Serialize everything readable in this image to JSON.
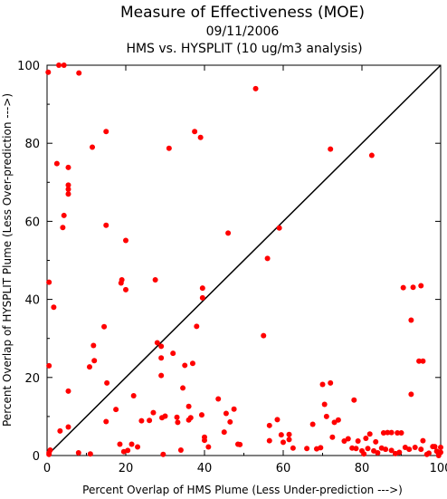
{
  "chart_data": {
    "type": "scatter",
    "title": "Measure of Effectiveness (MOE)",
    "subtitle_lines": [
      "09/11/2006",
      "HMS vs. HYSPLIT  (10 ug/m3 analysis)"
    ],
    "xlabel": "Percent Overlap of HMS Plume (Less Under-prediction --->)",
    "ylabel": "Percent Overlap of HYSPLIT Plume (Less Over-prediction --->)",
    "xlim": [
      0,
      100
    ],
    "ylim": [
      0,
      100
    ],
    "x_ticks": [
      0,
      20,
      40,
      60,
      80,
      100
    ],
    "y_ticks": [
      0,
      20,
      40,
      60,
      80,
      100
    ],
    "grid": false,
    "reference_line": {
      "from": [
        0,
        0
      ],
      "to": [
        100,
        100
      ]
    },
    "point_color": "#ff0000",
    "points": [
      [
        0.3,
        98.2
      ],
      [
        3.0,
        100.0
      ],
      [
        4.3,
        100.0
      ],
      [
        8.1,
        98.0
      ],
      [
        2.5,
        74.8
      ],
      [
        5.4,
        73.8
      ],
      [
        5.4,
        69.3
      ],
      [
        5.4,
        68.2
      ],
      [
        5.4,
        67.0
      ],
      [
        4.3,
        61.5
      ],
      [
        4.0,
        58.4
      ],
      [
        11.5,
        79.0
      ],
      [
        15.0,
        83.0
      ],
      [
        15.0,
        59.0
      ],
      [
        20.0,
        55.1
      ],
      [
        20.0,
        42.5
      ],
      [
        19.0,
        45.0
      ],
      [
        18.8,
        44.2
      ],
      [
        0.5,
        44.4
      ],
      [
        1.7,
        38.0
      ],
      [
        0.5,
        23.0
      ],
      [
        11.8,
        28.2
      ],
      [
        14.5,
        33.0
      ],
      [
        12.0,
        24.3
      ],
      [
        10.8,
        22.7
      ],
      [
        15.2,
        18.6
      ],
      [
        5.4,
        16.5
      ],
      [
        3.3,
        6.3
      ],
      [
        5.4,
        7.3
      ],
      [
        0.5,
        0.7
      ],
      [
        0.8,
        1.4
      ],
      [
        0.5,
        0.3
      ],
      [
        8.0,
        0.7
      ],
      [
        11.0,
        0.4
      ],
      [
        15.0,
        8.7
      ],
      [
        17.5,
        11.8
      ],
      [
        18.5,
        2.9
      ],
      [
        19.5,
        1.0
      ],
      [
        20.5,
        1.3
      ],
      [
        21.5,
        2.9
      ],
      [
        23.0,
        2.2
      ],
      [
        22.0,
        15.3
      ],
      [
        24.0,
        8.9
      ],
      [
        26.0,
        9.0
      ],
      [
        27.0,
        11.0
      ],
      [
        27.5,
        45.0
      ],
      [
        28.0,
        28.9
      ],
      [
        29.0,
        28.0
      ],
      [
        29.0,
        25.0
      ],
      [
        29.0,
        20.5
      ],
      [
        29.5,
        0.3
      ],
      [
        29.2,
        9.7
      ],
      [
        30.0,
        10.1
      ],
      [
        31.0,
        78.7
      ],
      [
        32.0,
        26.2
      ],
      [
        33.0,
        9.8
      ],
      [
        33.2,
        8.5
      ],
      [
        34.0,
        1.4
      ],
      [
        34.5,
        17.3
      ],
      [
        35.0,
        23.1
      ],
      [
        36.0,
        9.1
      ],
      [
        36.5,
        9.7
      ],
      [
        36.0,
        12.6
      ],
      [
        37.0,
        23.6
      ],
      [
        37.5,
        83.0
      ],
      [
        39.0,
        81.5
      ],
      [
        38.0,
        33.1
      ],
      [
        39.5,
        42.9
      ],
      [
        39.5,
        40.4
      ],
      [
        39.3,
        10.4
      ],
      [
        40.0,
        4.7
      ],
      [
        40.0,
        3.9
      ],
      [
        41.0,
        2.2
      ],
      [
        43.5,
        14.5
      ],
      [
        45.0,
        6.0
      ],
      [
        45.5,
        10.8
      ],
      [
        46.0,
        57.0
      ],
      [
        46.5,
        8.6
      ],
      [
        47.5,
        11.9
      ],
      [
        48.5,
        2.9
      ],
      [
        49.0,
        2.8
      ],
      [
        53.0,
        94.0
      ],
      [
        55.0,
        30.7
      ],
      [
        56.0,
        50.5
      ],
      [
        56.5,
        3.8
      ],
      [
        56.5,
        7.7
      ],
      [
        58.5,
        9.2
      ],
      [
        59.0,
        58.3
      ],
      [
        59.5,
        5.3
      ],
      [
        60.0,
        3.4
      ],
      [
        61.5,
        4.1
      ],
      [
        61.5,
        5.4
      ],
      [
        62.5,
        1.9
      ],
      [
        66.0,
        1.8
      ],
      [
        67.5,
        8.0
      ],
      [
        68.5,
        1.7
      ],
      [
        69.5,
        2.0
      ],
      [
        70.0,
        18.2
      ],
      [
        70.5,
        13.1
      ],
      [
        71.0,
        10.0
      ],
      [
        72.0,
        18.6
      ],
      [
        72.0,
        78.5
      ],
      [
        72.5,
        4.7
      ],
      [
        73.0,
        8.5
      ],
      [
        74.0,
        9.1
      ],
      [
        75.5,
        3.7
      ],
      [
        76.5,
        4.3
      ],
      [
        77.5,
        1.9
      ],
      [
        78.5,
        1.8
      ],
      [
        78.0,
        14.2
      ],
      [
        79.0,
        3.7
      ],
      [
        80.0,
        1.2
      ],
      [
        80.5,
        0.4
      ],
      [
        81.0,
        4.4
      ],
      [
        81.5,
        1.8
      ],
      [
        82.0,
        5.5
      ],
      [
        82.5,
        76.9
      ],
      [
        83.0,
        1.2
      ],
      [
        83.5,
        3.5
      ],
      [
        84.0,
        0.7
      ],
      [
        85.0,
        1.9
      ],
      [
        85.5,
        5.8
      ],
      [
        86.0,
        1.6
      ],
      [
        86.5,
        5.9
      ],
      [
        87.5,
        1.3
      ],
      [
        87.5,
        5.9
      ],
      [
        88.5,
        0.5
      ],
      [
        89.0,
        5.8
      ],
      [
        89.5,
        0.8
      ],
      [
        90.0,
        5.8
      ],
      [
        90.5,
        43.0
      ],
      [
        91.0,
        2.1
      ],
      [
        92.0,
        1.6
      ],
      [
        92.5,
        34.7
      ],
      [
        92.5,
        15.7
      ],
      [
        93.0,
        43.1
      ],
      [
        93.5,
        2.1
      ],
      [
        94.5,
        24.2
      ],
      [
        95.0,
        43.5
      ],
      [
        95.0,
        1.6
      ],
      [
        95.5,
        24.2
      ],
      [
        95.5,
        3.8
      ],
      [
        96.5,
        0.3
      ],
      [
        97.0,
        0.6
      ],
      [
        98.0,
        2.3
      ],
      [
        98.5,
        2.3
      ],
      [
        99.0,
        1.1
      ],
      [
        99.5,
        0.4
      ],
      [
        100.0,
        2.1
      ],
      [
        100.0,
        0.8
      ],
      [
        99.5,
        0.0
      ]
    ]
  }
}
